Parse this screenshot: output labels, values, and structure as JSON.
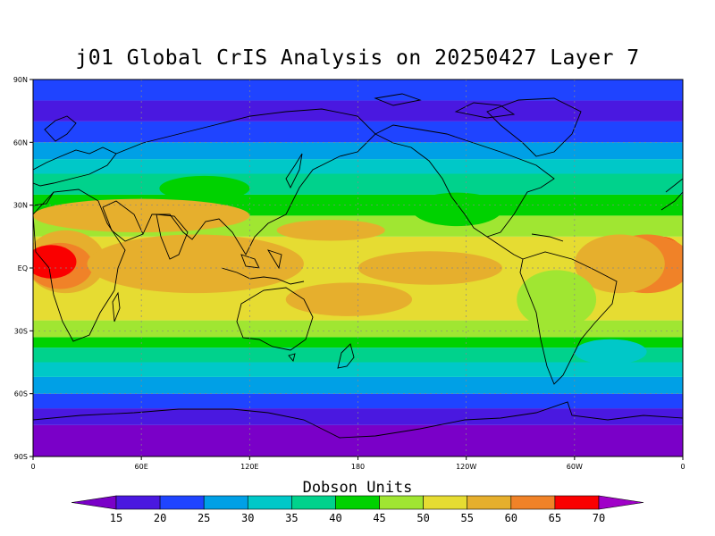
{
  "title": "j01 Global CrIS Analysis on 20250427 Layer 7",
  "colorbar": {
    "title": "Dobson Units",
    "levels": [
      "15",
      "20",
      "25",
      "30",
      "35",
      "40",
      "45",
      "50",
      "55",
      "60",
      "65",
      "70"
    ],
    "colors": [
      "#7a00c8",
      "#4a18e0",
      "#1f44ff",
      "#00a0e6",
      "#00c8c8",
      "#00d28c",
      "#00d200",
      "#a0e632",
      "#e6dc32",
      "#e6af2d",
      "#f08228",
      "#fa0000",
      "#e6007a",
      "#a000c8"
    ]
  },
  "axes": {
    "lat_labels": [
      "90N",
      "60N",
      "30N",
      "EQ",
      "30S",
      "60S",
      "90S"
    ],
    "lon_labels": [
      "0",
      "60E",
      "120E",
      "180",
      "120W",
      "60W",
      "0"
    ]
  },
  "chart_data": {
    "type": "heatmap",
    "title": "j01 Global CrIS Analysis on 20250427 Layer 7",
    "variable": "Dobson Units",
    "x_range": [
      "0",
      "0"
    ],
    "y_range": [
      "90S",
      "90N"
    ],
    "grid": true,
    "legend": "bottom",
    "bands": [
      {
        "lat_range": [
          -90,
          -75
        ],
        "level": 15
      },
      {
        "lat_range": [
          -75,
          -67
        ],
        "level": 20
      },
      {
        "lat_range": [
          -67,
          -60
        ],
        "level": 25
      },
      {
        "lat_range": [
          -60,
          -52
        ],
        "level": 30
      },
      {
        "lat_range": [
          -52,
          -45
        ],
        "level": 35
      },
      {
        "lat_range": [
          -45,
          -38
        ],
        "level": 40
      },
      {
        "lat_range": [
          -38,
          -33
        ],
        "level": 45
      },
      {
        "lat_range": [
          -33,
          -25
        ],
        "level": 50
      },
      {
        "lat_range": [
          -25,
          15
        ],
        "level": 55
      },
      {
        "lat_range": [
          15,
          25
        ],
        "level": 50
      },
      {
        "lat_range": [
          25,
          35
        ],
        "level": 45
      },
      {
        "lat_range": [
          35,
          45
        ],
        "level": 40
      },
      {
        "lat_range": [
          45,
          52
        ],
        "level": 35
      },
      {
        "lat_range": [
          52,
          60
        ],
        "level": 30
      },
      {
        "lat_range": [
          60,
          70
        ],
        "level": 25
      },
      {
        "lat_range": [
          70,
          80
        ],
        "level": 20
      },
      {
        "lat_range": [
          80,
          90
        ],
        "level": 25
      }
    ],
    "blobs": [
      {
        "lon": 18,
        "lat": 3,
        "rlon": 22,
        "rlat": 15,
        "level": 60
      },
      {
        "lon": 15,
        "lat": 1,
        "rlon": 18,
        "rlat": 11,
        "level": 65
      },
      {
        "lon": 10,
        "lat": 3,
        "rlon": 14,
        "rlat": 8,
        "level": 70
      },
      {
        "lon": 348,
        "lat": 3,
        "rlon": 14,
        "rlat": 12,
        "level": 70
      },
      {
        "lon": 340,
        "lat": 2,
        "rlon": 25,
        "rlat": 14,
        "level": 65
      },
      {
        "lon": 325,
        "lat": 2,
        "rlon": 25,
        "rlat": 14,
        "level": 60
      },
      {
        "lon": 90,
        "lat": 2,
        "rlon": 60,
        "rlat": 14,
        "level": 60
      },
      {
        "lon": 165,
        "lat": 18,
        "rlon": 30,
        "rlat": 5,
        "level": 60
      },
      {
        "lon": 220,
        "lat": 0,
        "rlon": 40,
        "rlat": 8,
        "level": 60
      },
      {
        "lon": 60,
        "lat": 25,
        "rlon": 60,
        "rlat": 8,
        "level": 60
      },
      {
        "lon": 95,
        "lat": 38,
        "rlon": 25,
        "rlat": 6,
        "level": 45
      },
      {
        "lon": 235,
        "lat": 28,
        "rlon": 25,
        "rlat": 8,
        "level": 45
      },
      {
        "lon": 290,
        "lat": -15,
        "rlon": 22,
        "rlat": 14,
        "level": 50
      },
      {
        "lon": 175,
        "lat": -15,
        "rlon": 35,
        "rlat": 8,
        "level": 60
      },
      {
        "lon": 320,
        "lat": -40,
        "rlon": 20,
        "rlat": 6,
        "level": 35
      }
    ]
  }
}
